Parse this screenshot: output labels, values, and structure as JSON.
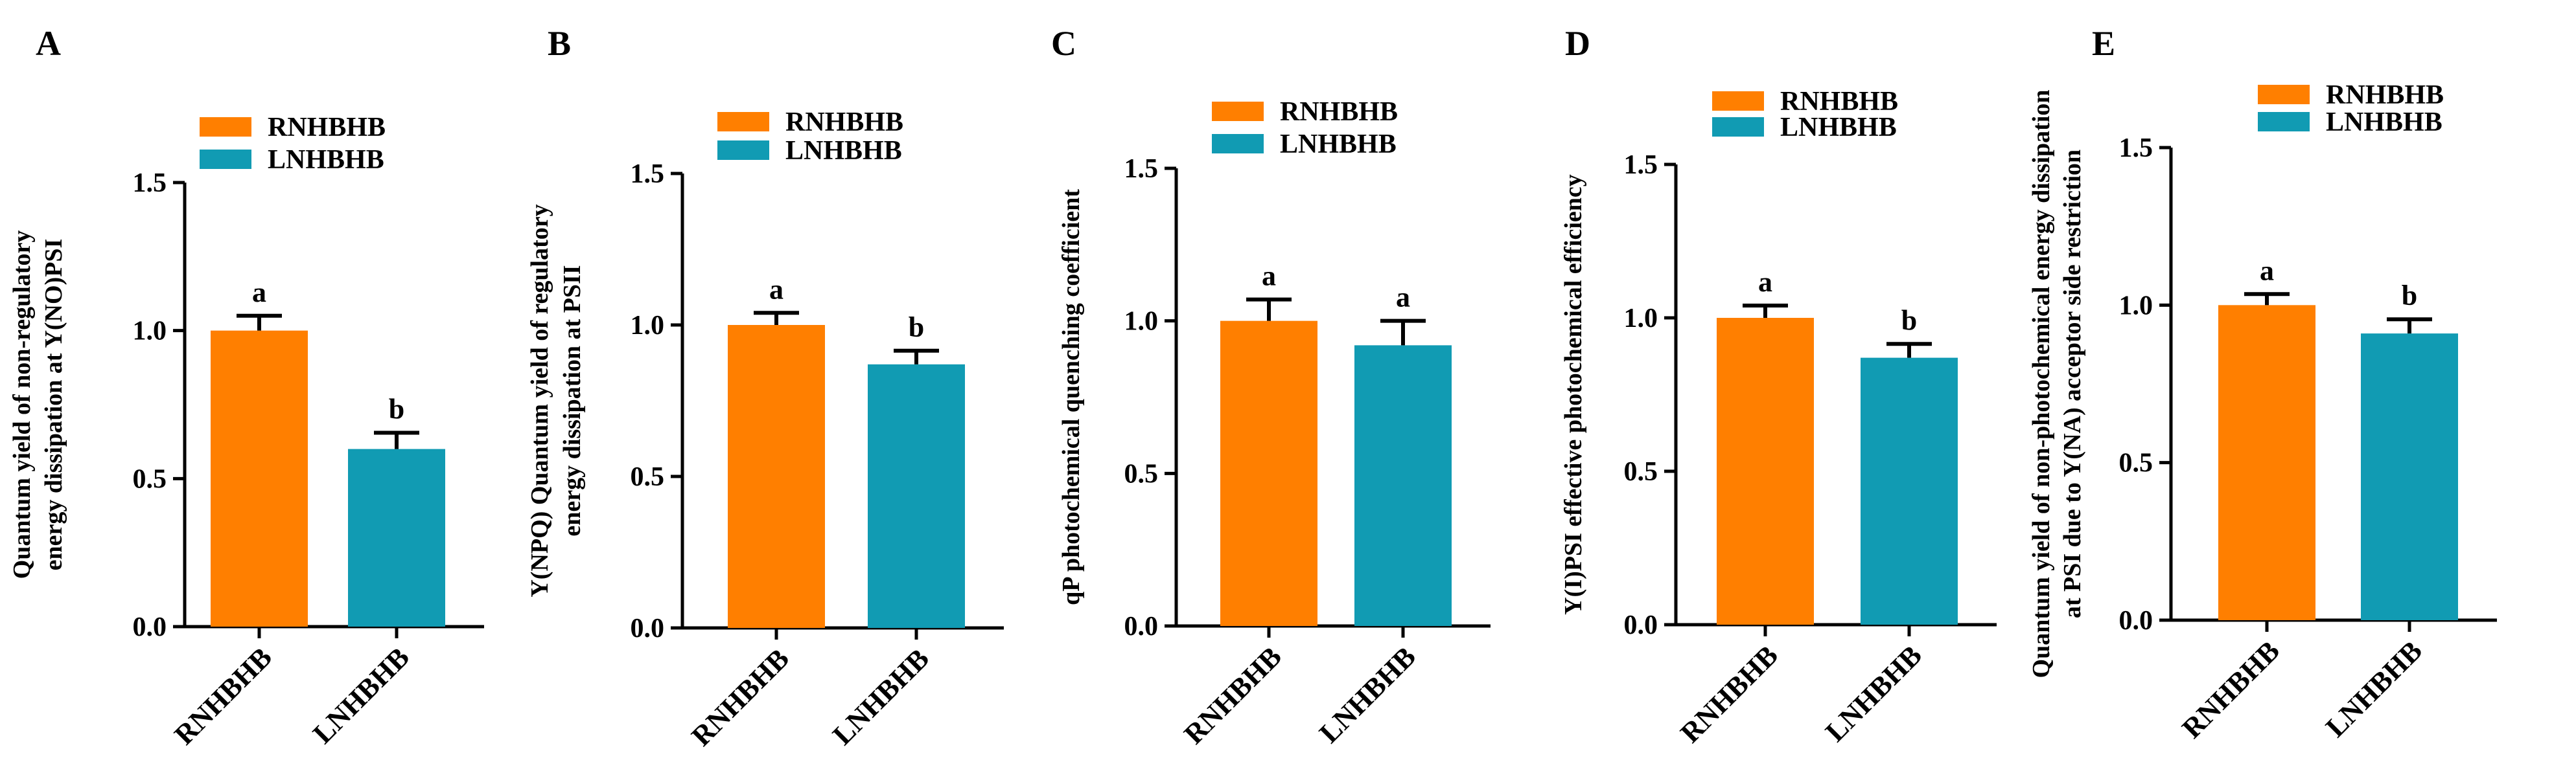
{
  "colors": {
    "RNHBHB": "#ff7f00",
    "LNHBHB": "#119bb3"
  },
  "chart_data": [
    {
      "type": "bar",
      "panel": "A",
      "title": "",
      "ylabel_lines": [
        "Quantum yield of non-regulatory",
        "energy dissipation at Y(NO)PSI"
      ],
      "categories": [
        "RNHBHB",
        "LNHBHB"
      ],
      "values": [
        1.0,
        0.6
      ],
      "errors": [
        0.05,
        0.055
      ],
      "significance": [
        "a",
        "b"
      ],
      "legend": [
        "RNHBHB",
        "LNHBHB"
      ],
      "ylim": [
        0,
        1.5
      ],
      "yticks": [
        "0.0",
        "0.5",
        "1.0",
        "1.5"
      ],
      "grid": false
    },
    {
      "type": "bar",
      "panel": "B",
      "title": "",
      "ylabel_lines": [
        "Y(NPQ) Quantum yield of regulatory",
        "energy dissipation at PSII"
      ],
      "categories": [
        "RNHBHB",
        "LNHBHB"
      ],
      "values": [
        1.0,
        0.87
      ],
      "errors": [
        0.04,
        0.045
      ],
      "significance": [
        "a",
        "b"
      ],
      "legend": [
        "RNHBHB",
        "LNHBHB"
      ],
      "ylim": [
        0,
        1.5
      ],
      "yticks": [
        "0.0",
        "0.5",
        "1.0",
        "1.5"
      ],
      "grid": false
    },
    {
      "type": "bar",
      "panel": "C",
      "title": "",
      "ylabel_lines": [
        "qP photochemical quenching coefficient"
      ],
      "categories": [
        "RNHBHB",
        "LNHBHB"
      ],
      "values": [
        1.0,
        0.92
      ],
      "errors": [
        0.07,
        0.08
      ],
      "significance": [
        "a",
        "a"
      ],
      "legend": [
        "RNHBHB",
        "LNHBHB"
      ],
      "ylim": [
        0,
        1.5
      ],
      "yticks": [
        "0.0",
        "0.5",
        "1.0",
        "1.5"
      ],
      "grid": false
    },
    {
      "type": "bar",
      "panel": "D",
      "title": "",
      "ylabel_lines": [
        "Y(I)PSI effective photochemical efficiency"
      ],
      "categories": [
        "RNHBHB",
        "LNHBHB"
      ],
      "values": [
        1.0,
        0.87
      ],
      "errors": [
        0.04,
        0.045
      ],
      "significance": [
        "a",
        "b"
      ],
      "legend": [
        "RNHBHB",
        "LNHBHB"
      ],
      "ylim": [
        0,
        1.5
      ],
      "yticks": [
        "0.0",
        "0.5",
        "1.0",
        "1.5"
      ],
      "grid": false
    },
    {
      "type": "bar",
      "panel": "E",
      "title": "",
      "ylabel_lines": [
        "Quantum yield of non-photochemical energy dissipation",
        "at PSI due to Y(NA) acceptor side restriction"
      ],
      "categories": [
        "RNHBHB",
        "LNHBHB"
      ],
      "values": [
        1.0,
        0.91
      ],
      "errors": [
        0.035,
        0.045
      ],
      "significance": [
        "a",
        "b"
      ],
      "legend": [
        "RNHBHB",
        "LNHBHB"
      ],
      "ylim": [
        0,
        1.5
      ],
      "yticks": [
        "0.0",
        "0.5",
        "1.0",
        "1.5"
      ],
      "grid": false
    }
  ]
}
